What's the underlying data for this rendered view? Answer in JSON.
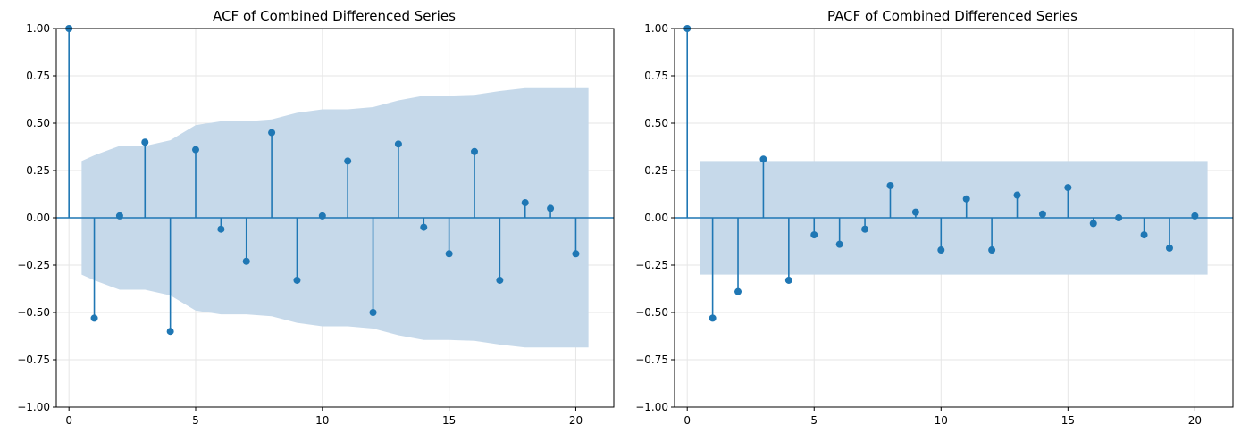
{
  "chart_data": [
    {
      "type": "stem",
      "title": "ACF of Combined Differenced Series",
      "xlabel": "",
      "ylabel": "",
      "xlim": [
        -0.5,
        21.5
      ],
      "ylim": [
        -1.0,
        1.0
      ],
      "xticks": [
        0,
        5,
        10,
        15,
        20
      ],
      "xtick_labels": [
        "0",
        "5",
        "10",
        "15",
        "20"
      ],
      "yticks": [
        1.0,
        0.75,
        0.5,
        0.25,
        0.0,
        -0.25,
        -0.5,
        -0.75,
        -1.0
      ],
      "ytick_labels": [
        "1.00",
        "0.75",
        "0.50",
        "0.25",
        "0.00",
        "−0.25",
        "−0.50",
        "−0.75",
        "−1.00"
      ],
      "grid": true,
      "lags": [
        0,
        1,
        2,
        3,
        4,
        5,
        6,
        7,
        8,
        9,
        10,
        11,
        12,
        13,
        14,
        15,
        16,
        17,
        18,
        19,
        20
      ],
      "values": [
        1.0,
        -0.53,
        0.01,
        0.4,
        -0.6,
        0.36,
        -0.06,
        -0.23,
        0.45,
        -0.33,
        0.01,
        0.3,
        -0.5,
        0.39,
        -0.05,
        -0.19,
        0.35,
        -0.33,
        0.08,
        0.05,
        -0.19
      ],
      "confidence_band": {
        "lags": [
          0.5,
          1,
          2,
          3,
          4,
          5,
          6,
          7,
          8,
          9,
          10,
          11,
          12,
          13,
          14,
          15,
          16,
          17,
          18,
          19,
          20,
          20.5
        ],
        "upper": [
          0.3,
          0.33,
          0.38,
          0.38,
          0.41,
          0.49,
          0.51,
          0.51,
          0.52,
          0.555,
          0.573,
          0.573,
          0.585,
          0.62,
          0.645,
          0.645,
          0.65,
          0.67,
          0.685,
          0.685,
          0.685,
          0.685
        ]
      },
      "colors": {
        "stem": "#1f77b4",
        "band": "#c6d9ea",
        "grid": "#e6e6e6"
      }
    },
    {
      "type": "stem",
      "title": "PACF of Combined Differenced Series",
      "xlabel": "",
      "ylabel": "",
      "xlim": [
        -0.5,
        21.5
      ],
      "ylim": [
        -1.0,
        1.0
      ],
      "xticks": [
        0,
        5,
        10,
        15,
        20
      ],
      "xtick_labels": [
        "0",
        "5",
        "10",
        "15",
        "20"
      ],
      "yticks": [
        1.0,
        0.75,
        0.5,
        0.25,
        0.0,
        -0.25,
        -0.5,
        -0.75,
        -1.0
      ],
      "ytick_labels": [
        "1.00",
        "0.75",
        "0.50",
        "0.25",
        "0.00",
        "−0.25",
        "−0.50",
        "−0.75",
        "−1.00"
      ],
      "grid": true,
      "lags": [
        0,
        1,
        2,
        3,
        4,
        5,
        6,
        7,
        8,
        9,
        10,
        11,
        12,
        13,
        14,
        15,
        16,
        17,
        18,
        19,
        20
      ],
      "values": [
        1.0,
        -0.53,
        -0.39,
        0.31,
        -0.33,
        -0.09,
        -0.14,
        -0.06,
        0.17,
        0.03,
        -0.17,
        0.1,
        -0.17,
        0.12,
        0.02,
        0.16,
        -0.03,
        0.0,
        -0.09,
        -0.16,
        0.01
      ],
      "confidence_band": {
        "lags": [
          0.5,
          20.5
        ],
        "upper": [
          0.3,
          0.3
        ]
      },
      "colors": {
        "stem": "#1f77b4",
        "band": "#c6d9ea",
        "grid": "#e6e6e6"
      }
    }
  ]
}
